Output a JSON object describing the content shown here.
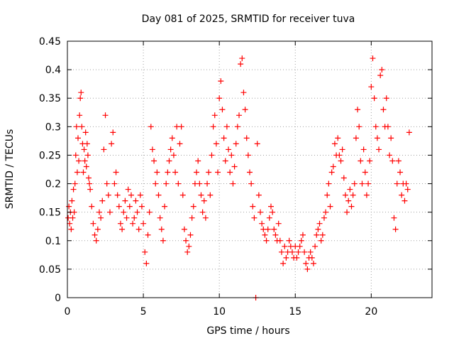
{
  "chart_data": {
    "type": "scatter",
    "title": "Day 081 of 2025, SRMTID for receiver tuva",
    "xlabel": "GPS time / hours",
    "ylabel": "SRMTID / TECUs",
    "xlim": [
      0,
      24
    ],
    "ylim": [
      0,
      0.45
    ],
    "x_ticks": [
      0,
      5,
      10,
      15,
      20
    ],
    "x_tick_labels": [
      "0",
      "5",
      "10",
      "15",
      "20"
    ],
    "y_ticks": [
      0,
      0.05,
      0.1,
      0.15,
      0.2,
      0.25,
      0.3,
      0.35,
      0.4,
      0.45
    ],
    "y_tick_labels": [
      "0",
      "0.05",
      "0.1",
      "0.15",
      "0.2",
      "0.25",
      "0.3",
      "0.35",
      "0.4",
      "0.45"
    ],
    "grid": true,
    "marker": "+",
    "color": "#ff0000",
    "series": [
      {
        "name": "SRMTID",
        "points": [
          [
            0.05,
            0.14
          ],
          [
            0.1,
            0.16
          ],
          [
            0.15,
            0.13
          ],
          [
            0.2,
            0.15
          ],
          [
            0.25,
            0.12
          ],
          [
            0.3,
            0.17
          ],
          [
            0.35,
            0.14
          ],
          [
            0.4,
            0.19
          ],
          [
            0.45,
            0.15
          ],
          [
            0.5,
            0.2
          ],
          [
            0.55,
            0.25
          ],
          [
            0.6,
            0.3
          ],
          [
            0.65,
            0.22
          ],
          [
            0.7,
            0.28
          ],
          [
            0.75,
            0.24
          ],
          [
            0.8,
            0.32
          ],
          [
            0.85,
            0.35
          ],
          [
            0.9,
            0.36
          ],
          [
            0.95,
            0.3
          ],
          [
            1.0,
            0.27
          ],
          [
            1.05,
            0.22
          ],
          [
            1.1,
            0.26
          ],
          [
            1.15,
            0.24
          ],
          [
            1.2,
            0.29
          ],
          [
            1.25,
            0.23
          ],
          [
            1.3,
            0.27
          ],
          [
            1.35,
            0.25
          ],
          [
            1.4,
            0.21
          ],
          [
            1.45,
            0.2
          ],
          [
            1.5,
            0.19
          ],
          [
            1.6,
            0.16
          ],
          [
            1.7,
            0.13
          ],
          [
            1.8,
            0.11
          ],
          [
            1.9,
            0.1
          ],
          [
            2.0,
            0.12
          ],
          [
            2.1,
            0.15
          ],
          [
            2.2,
            0.14
          ],
          [
            2.3,
            0.17
          ],
          [
            2.4,
            0.26
          ],
          [
            2.5,
            0.32
          ],
          [
            2.6,
            0.2
          ],
          [
            2.7,
            0.18
          ],
          [
            2.8,
            0.15
          ],
          [
            2.9,
            0.27
          ],
          [
            3.0,
            0.29
          ],
          [
            3.1,
            0.2
          ],
          [
            3.2,
            0.22
          ],
          [
            3.3,
            0.18
          ],
          [
            3.4,
            0.16
          ],
          [
            3.5,
            0.13
          ],
          [
            3.6,
            0.12
          ],
          [
            3.7,
            0.15
          ],
          [
            3.8,
            0.17
          ],
          [
            3.9,
            0.14
          ],
          [
            4.0,
            0.19
          ],
          [
            4.1,
            0.16
          ],
          [
            4.2,
            0.18
          ],
          [
            4.3,
            0.13
          ],
          [
            4.4,
            0.14
          ],
          [
            4.5,
            0.17
          ],
          [
            4.6,
            0.15
          ],
          [
            4.7,
            0.12
          ],
          [
            4.8,
            0.18
          ],
          [
            4.9,
            0.16
          ],
          [
            5.0,
            0.13
          ],
          [
            5.1,
            0.08
          ],
          [
            5.2,
            0.06
          ],
          [
            5.3,
            0.11
          ],
          [
            5.4,
            0.15
          ],
          [
            5.5,
            0.3
          ],
          [
            5.6,
            0.26
          ],
          [
            5.7,
            0.24
          ],
          [
            5.8,
            0.2
          ],
          [
            5.9,
            0.22
          ],
          [
            6.0,
            0.18
          ],
          [
            6.1,
            0.14
          ],
          [
            6.2,
            0.12
          ],
          [
            6.3,
            0.1
          ],
          [
            6.4,
            0.16
          ],
          [
            6.5,
            0.2
          ],
          [
            6.6,
            0.22
          ],
          [
            6.7,
            0.24
          ],
          [
            6.8,
            0.26
          ],
          [
            6.9,
            0.28
          ],
          [
            7.0,
            0.25
          ],
          [
            7.1,
            0.22
          ],
          [
            7.2,
            0.3
          ],
          [
            7.3,
            0.2
          ],
          [
            7.4,
            0.27
          ],
          [
            7.5,
            0.3
          ],
          [
            7.6,
            0.18
          ],
          [
            7.7,
            0.12
          ],
          [
            7.8,
            0.1
          ],
          [
            7.9,
            0.08
          ],
          [
            8.0,
            0.09
          ],
          [
            8.1,
            0.11
          ],
          [
            8.2,
            0.14
          ],
          [
            8.3,
            0.16
          ],
          [
            8.4,
            0.2
          ],
          [
            8.5,
            0.22
          ],
          [
            8.6,
            0.24
          ],
          [
            8.7,
            0.2
          ],
          [
            8.8,
            0.18
          ],
          [
            8.9,
            0.15
          ],
          [
            9.0,
            0.17
          ],
          [
            9.1,
            0.14
          ],
          [
            9.2,
            0.2
          ],
          [
            9.3,
            0.22
          ],
          [
            9.4,
            0.18
          ],
          [
            9.5,
            0.25
          ],
          [
            9.6,
            0.3
          ],
          [
            9.7,
            0.32
          ],
          [
            9.8,
            0.27
          ],
          [
            9.9,
            0.22
          ],
          [
            10.0,
            0.35
          ],
          [
            10.1,
            0.38
          ],
          [
            10.2,
            0.33
          ],
          [
            10.3,
            0.28
          ],
          [
            10.4,
            0.24
          ],
          [
            10.5,
            0.3
          ],
          [
            10.6,
            0.26
          ],
          [
            10.7,
            0.22
          ],
          [
            10.8,
            0.25
          ],
          [
            10.9,
            0.2
          ],
          [
            11.0,
            0.23
          ],
          [
            11.1,
            0.27
          ],
          [
            11.2,
            0.3
          ],
          [
            11.3,
            0.32
          ],
          [
            11.4,
            0.41
          ],
          [
            11.5,
            0.42
          ],
          [
            11.6,
            0.36
          ],
          [
            11.7,
            0.33
          ],
          [
            11.8,
            0.28
          ],
          [
            11.9,
            0.25
          ],
          [
            12.0,
            0.22
          ],
          [
            12.1,
            0.2
          ],
          [
            12.2,
            0.16
          ],
          [
            12.3,
            0.14
          ],
          [
            12.4,
            0.0
          ],
          [
            12.5,
            0.27
          ],
          [
            12.6,
            0.18
          ],
          [
            12.7,
            0.15
          ],
          [
            12.8,
            0.13
          ],
          [
            12.9,
            0.12
          ],
          [
            13.0,
            0.11
          ],
          [
            13.1,
            0.1
          ],
          [
            13.2,
            0.12
          ],
          [
            13.3,
            0.14
          ],
          [
            13.4,
            0.16
          ],
          [
            13.5,
            0.15
          ],
          [
            13.6,
            0.12
          ],
          [
            13.7,
            0.11
          ],
          [
            13.8,
            0.1
          ],
          [
            13.9,
            0.13
          ],
          [
            14.0,
            0.1
          ],
          [
            14.1,
            0.08
          ],
          [
            14.2,
            0.06
          ],
          [
            14.3,
            0.09
          ],
          [
            14.4,
            0.07
          ],
          [
            14.5,
            0.08
          ],
          [
            14.6,
            0.1
          ],
          [
            14.7,
            0.09
          ],
          [
            14.8,
            0.08
          ],
          [
            14.9,
            0.07
          ],
          [
            15.0,
            0.09
          ],
          [
            15.1,
            0.07
          ],
          [
            15.2,
            0.08
          ],
          [
            15.3,
            0.09
          ],
          [
            15.4,
            0.1
          ],
          [
            15.5,
            0.11
          ],
          [
            15.6,
            0.08
          ],
          [
            15.7,
            0.06
          ],
          [
            15.8,
            0.05
          ],
          [
            15.9,
            0.07
          ],
          [
            16.0,
            0.08
          ],
          [
            16.1,
            0.07
          ],
          [
            16.2,
            0.06
          ],
          [
            16.3,
            0.09
          ],
          [
            16.4,
            0.11
          ],
          [
            16.5,
            0.12
          ],
          [
            16.6,
            0.13
          ],
          [
            16.7,
            0.1
          ],
          [
            16.8,
            0.11
          ],
          [
            16.9,
            0.14
          ],
          [
            17.0,
            0.15
          ],
          [
            17.1,
            0.18
          ],
          [
            17.2,
            0.2
          ],
          [
            17.3,
            0.16
          ],
          [
            17.4,
            0.22
          ],
          [
            17.5,
            0.23
          ],
          [
            17.6,
            0.27
          ],
          [
            17.7,
            0.25
          ],
          [
            17.8,
            0.28
          ],
          [
            17.9,
            0.25
          ],
          [
            18.0,
            0.24
          ],
          [
            18.1,
            0.26
          ],
          [
            18.2,
            0.21
          ],
          [
            18.3,
            0.18
          ],
          [
            18.4,
            0.15
          ],
          [
            18.5,
            0.17
          ],
          [
            18.6,
            0.19
          ],
          [
            18.7,
            0.16
          ],
          [
            18.8,
            0.18
          ],
          [
            18.9,
            0.2
          ],
          [
            19.0,
            0.28
          ],
          [
            19.1,
            0.33
          ],
          [
            19.2,
            0.3
          ],
          [
            19.3,
            0.24
          ],
          [
            19.4,
            0.2
          ],
          [
            19.5,
            0.26
          ],
          [
            19.6,
            0.22
          ],
          [
            19.7,
            0.18
          ],
          [
            19.8,
            0.2
          ],
          [
            19.9,
            0.24
          ],
          [
            20.0,
            0.37
          ],
          [
            20.1,
            0.42
          ],
          [
            20.2,
            0.35
          ],
          [
            20.3,
            0.3
          ],
          [
            20.4,
            0.28
          ],
          [
            20.5,
            0.26
          ],
          [
            20.6,
            0.39
          ],
          [
            20.7,
            0.4
          ],
          [
            20.8,
            0.33
          ],
          [
            20.9,
            0.3
          ],
          [
            21.0,
            0.35
          ],
          [
            21.1,
            0.3
          ],
          [
            21.2,
            0.25
          ],
          [
            21.3,
            0.28
          ],
          [
            21.4,
            0.24
          ],
          [
            21.5,
            0.14
          ],
          [
            21.6,
            0.12
          ],
          [
            21.7,
            0.2
          ],
          [
            21.8,
            0.24
          ],
          [
            21.9,
            0.22
          ],
          [
            22.0,
            0.18
          ],
          [
            22.1,
            0.2
          ],
          [
            22.2,
            0.17
          ],
          [
            22.3,
            0.2
          ],
          [
            22.4,
            0.19
          ],
          [
            22.5,
            0.29
          ]
        ]
      }
    ]
  }
}
